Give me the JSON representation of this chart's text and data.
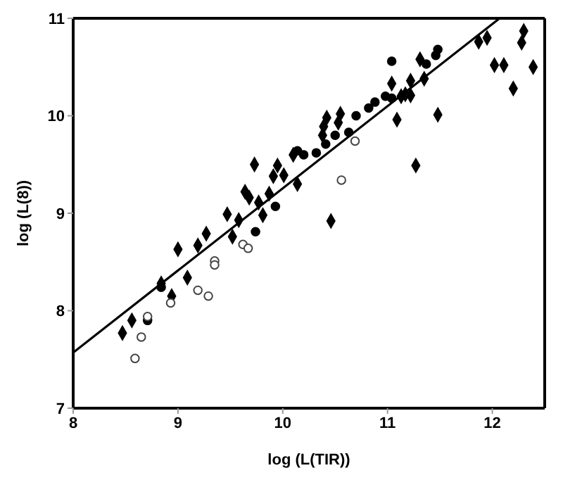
{
  "chart_data": {
    "type": "scatter",
    "xlabel": "log (L(TIR))",
    "ylabel": "log (L(8))",
    "xlim": [
      8,
      12.5
    ],
    "ylim": [
      7,
      11
    ],
    "xticks": [
      8,
      9,
      10,
      11,
      12
    ],
    "yticks": [
      7,
      8,
      9,
      10,
      11
    ],
    "grid": false,
    "series": [
      {
        "marker": "diamond",
        "color": "#000000",
        "x": [
          8.47,
          8.56,
          9.0,
          9.19,
          9.27,
          9.09,
          8.94,
          8.84,
          9.47,
          9.52,
          9.58,
          9.81,
          9.73,
          9.95,
          10.1,
          9.91,
          10.01,
          10.14,
          9.64,
          9.68,
          9.77,
          9.87,
          10.42,
          10.55,
          10.39,
          10.38,
          10.53,
          11.13,
          11.17,
          10.46,
          11.27,
          11.48,
          11.09,
          11.87,
          11.95,
          12.3,
          12.28,
          12.02,
          12.11,
          12.39,
          12.2,
          11.35,
          11.22,
          11.22,
          11.31,
          11.04
        ],
        "values": [
          7.77,
          7.9,
          8.63,
          8.67,
          8.79,
          8.34,
          8.15,
          8.28,
          8.99,
          8.76,
          8.93,
          8.98,
          9.5,
          9.49,
          9.6,
          9.38,
          9.39,
          9.3,
          9.22,
          9.16,
          9.11,
          9.2,
          9.98,
          10.02,
          9.89,
          9.8,
          9.93,
          10.2,
          10.22,
          8.92,
          9.49,
          10.01,
          9.96,
          10.76,
          10.8,
          10.87,
          10.75,
          10.52,
          10.52,
          10.5,
          10.28,
          10.38,
          10.36,
          10.21,
          10.58,
          10.33
        ]
      },
      {
        "marker": "circle",
        "color": "#000000",
        "x": [
          8.71,
          8.84,
          9.74,
          9.93,
          11.04,
          11.48,
          11.46,
          11.37,
          11.04,
          10.98,
          10.88,
          10.82,
          10.7,
          10.63,
          10.5,
          10.41,
          10.32,
          10.2,
          10.14
        ],
        "values": [
          7.9,
          8.24,
          8.81,
          9.07,
          10.56,
          10.68,
          10.62,
          10.53,
          10.18,
          10.2,
          10.14,
          10.08,
          10.0,
          9.83,
          9.8,
          9.71,
          9.62,
          9.6,
          9.64
        ]
      },
      {
        "marker": "circle",
        "color": "#ffffff",
        "x": [
          8.59,
          8.65,
          8.71,
          8.93,
          9.19,
          9.29,
          9.35,
          9.35,
          9.62,
          9.67,
          10.69,
          10.56
        ],
        "values": [
          7.51,
          7.73,
          7.94,
          8.08,
          8.21,
          8.15,
          8.51,
          8.47,
          8.68,
          8.64,
          9.74,
          9.34
        ]
      },
      {
        "type": "line",
        "color": "#000000",
        "marker": "none",
        "line_style": "solid",
        "x": [
          8,
          12.07
        ],
        "values": [
          7.57,
          11
        ]
      }
    ]
  }
}
